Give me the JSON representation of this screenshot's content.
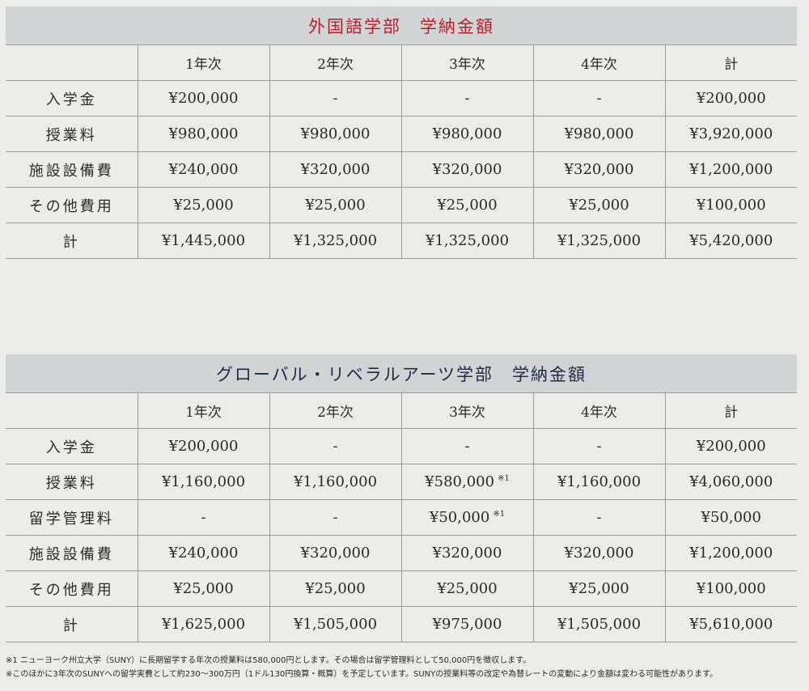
{
  "tables": [
    {
      "title": "外国語学部　学納金額",
      "headers": [
        "",
        "1年次",
        "2年次",
        "3年次",
        "4年次",
        "計"
      ],
      "rows": [
        {
          "label": "入学金",
          "cells": [
            {
              "v": "¥200,000"
            },
            {
              "v": "-"
            },
            {
              "v": "-"
            },
            {
              "v": "-"
            },
            {
              "v": "¥200,000"
            }
          ]
        },
        {
          "label": "授業料",
          "cells": [
            {
              "v": "¥980,000"
            },
            {
              "v": "¥980,000"
            },
            {
              "v": "¥980,000"
            },
            {
              "v": "¥980,000"
            },
            {
              "v": "¥3,920,000"
            }
          ]
        },
        {
          "label": "施設設備費",
          "cells": [
            {
              "v": "¥240,000"
            },
            {
              "v": "¥320,000"
            },
            {
              "v": "¥320,000"
            },
            {
              "v": "¥320,000"
            },
            {
              "v": "¥1,200,000"
            }
          ]
        },
        {
          "label": "その他費用",
          "cells": [
            {
              "v": "¥25,000"
            },
            {
              "v": "¥25,000"
            },
            {
              "v": "¥25,000"
            },
            {
              "v": "¥25,000"
            },
            {
              "v": "¥100,000"
            }
          ]
        },
        {
          "label": "計",
          "cells": [
            {
              "v": "¥1,445,000"
            },
            {
              "v": "¥1,325,000"
            },
            {
              "v": "¥1,325,000"
            },
            {
              "v": "¥1,325,000"
            },
            {
              "v": "¥5,420,000"
            }
          ]
        }
      ]
    },
    {
      "title": "グローバル・リベラルアーツ学部　学納金額",
      "headers": [
        "",
        "1年次",
        "2年次",
        "3年次",
        "4年次",
        "計"
      ],
      "rows": [
        {
          "label": "入学金",
          "cells": [
            {
              "v": "¥200,000"
            },
            {
              "v": "-"
            },
            {
              "v": "-"
            },
            {
              "v": "-"
            },
            {
              "v": "¥200,000"
            }
          ]
        },
        {
          "label": "授業料",
          "cells": [
            {
              "v": "¥1,160,000"
            },
            {
              "v": "¥1,160,000"
            },
            {
              "v": "¥580,000",
              "note": "※1"
            },
            {
              "v": "¥1,160,000"
            },
            {
              "v": "¥4,060,000"
            }
          ]
        },
        {
          "label": "留学管理料",
          "cells": [
            {
              "v": "-"
            },
            {
              "v": "-"
            },
            {
              "v": "¥50,000",
              "note": "※1"
            },
            {
              "v": "-"
            },
            {
              "v": "¥50,000"
            }
          ]
        },
        {
          "label": "施設設備費",
          "cells": [
            {
              "v": "¥240,000"
            },
            {
              "v": "¥320,000"
            },
            {
              "v": "¥320,000"
            },
            {
              "v": "¥320,000"
            },
            {
              "v": "¥1,200,000"
            }
          ]
        },
        {
          "label": "その他費用",
          "cells": [
            {
              "v": "¥25,000"
            },
            {
              "v": "¥25,000"
            },
            {
              "v": "¥25,000"
            },
            {
              "v": "¥25,000"
            },
            {
              "v": "¥100,000"
            }
          ]
        },
        {
          "label": "計",
          "cells": [
            {
              "v": "¥1,625,000"
            },
            {
              "v": "¥1,505,000"
            },
            {
              "v": "¥975,000"
            },
            {
              "v": "¥1,505,000"
            },
            {
              "v": "¥5,610,000"
            }
          ]
        }
      ]
    }
  ],
  "notes": [
    "※1 ニューヨーク州立大学（SUNY）に長期留学する年次の授業料は580,000円とします。その場合は留学管理料として50,000円を徴収します。",
    "※このほかに3年次のSUNYへの留学実費として約230～300万円（1ドル130円換算・概算）を予定しています。SUNYの授業料等の改定や為替レートの変動により金額は変わる可能性があります。"
  ]
}
